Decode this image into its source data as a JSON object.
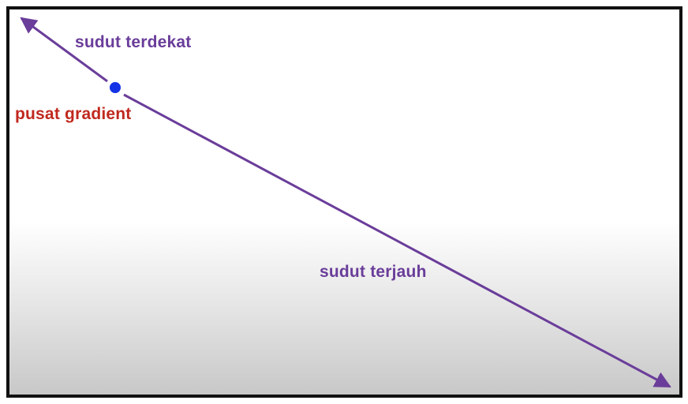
{
  "labels": {
    "nearest_corner": "sudut terdekat",
    "gradient_center": "pusat gradient",
    "farthest_corner": "sudut terjauh"
  },
  "colors": {
    "arrow": "#6a3d9a",
    "center_dot": "#1433e6",
    "center_label": "#c0281e",
    "frame_border": "#111111"
  }
}
